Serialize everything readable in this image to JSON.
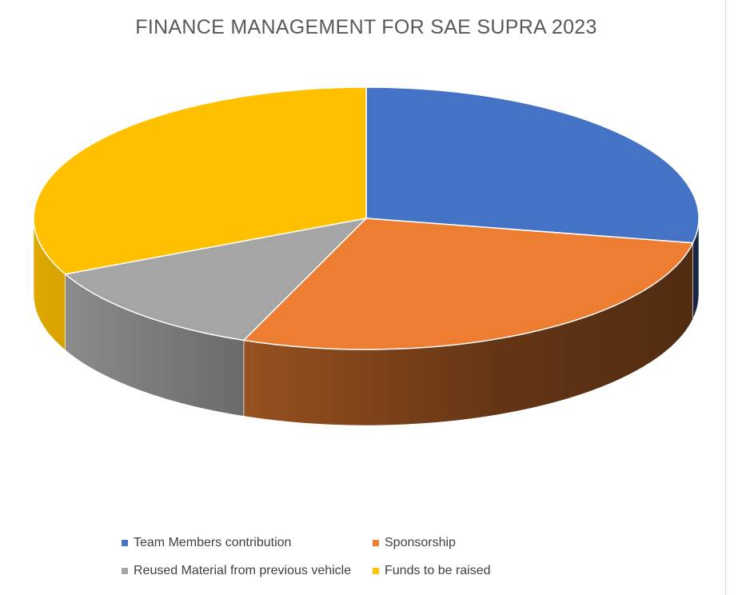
{
  "chart_data": {
    "type": "pie",
    "title": "FINANCE MANAGEMENT FOR SAE SUPRA 2023",
    "three_d": true,
    "legend_position": "bottom",
    "slices": [
      {
        "name": "Team Members contribution",
        "value": 28,
        "color": "#4472C4"
      },
      {
        "name": "Sponsorship",
        "value": 28,
        "color": "#ED7D31"
      },
      {
        "name": "Reused Material from previous vehicle",
        "value": 12,
        "color": "#A5A5A5"
      },
      {
        "name": "Funds to be raised",
        "value": 32,
        "color": "#FFC000"
      }
    ]
  }
}
